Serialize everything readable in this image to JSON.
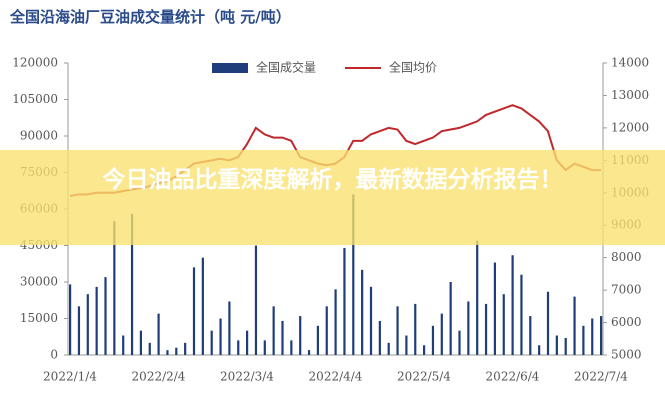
{
  "chart_data": {
    "type": "bar-line",
    "title": "全国沿海油厂豆油成交量统计（吨  元/吨）",
    "banner": "今日油品比重深度解析，最新数据分析报告！",
    "categories": [
      "2022/1/4",
      null,
      null,
      null,
      null,
      null,
      null,
      null,
      null,
      null,
      "2022/2/4",
      null,
      null,
      null,
      null,
      null,
      null,
      null,
      null,
      null,
      "2022/3/4",
      null,
      null,
      null,
      null,
      null,
      null,
      null,
      null,
      null,
      "2022/4/4",
      null,
      null,
      null,
      null,
      null,
      null,
      null,
      null,
      null,
      "2022/5/4",
      null,
      null,
      null,
      null,
      null,
      null,
      null,
      null,
      null,
      "2022/6/4",
      null,
      null,
      null,
      null,
      null,
      null,
      null,
      null,
      null,
      "2022/7/4"
    ],
    "series": [
      {
        "name": "全国成交量",
        "color": "#1f3d7a",
        "values": [
          29000,
          20000,
          25000,
          28000,
          32000,
          55000,
          8000,
          58000,
          10000,
          5000,
          17000,
          2000,
          3000,
          5000,
          36000,
          40000,
          10000,
          15000,
          22000,
          6000,
          10000,
          45000,
          6000,
          20000,
          14000,
          6000,
          16000,
          2000,
          12000,
          20000,
          27000,
          44000,
          66000,
          35000,
          28000,
          14000,
          5000,
          20000,
          8000,
          21000,
          4000,
          12000,
          17000,
          30000,
          10000,
          22000,
          47000,
          21000,
          38000,
          25000,
          41000,
          33000,
          16000,
          4000,
          26000,
          8000,
          7000,
          24000,
          12000,
          15000,
          16000
        ]
      },
      {
        "name": "全国均价",
        "color": "#c0282c",
        "axis": "y2",
        "values": [
          9900,
          9950,
          9950,
          10000,
          10000,
          10000,
          10050,
          10100,
          10150,
          10200,
          10300,
          10350,
          10500,
          10700,
          10900,
          10950,
          11000,
          11050,
          11000,
          11100,
          11500,
          12000,
          11800,
          11700,
          11700,
          11600,
          11100,
          11000,
          10900,
          10850,
          10900,
          11100,
          11600,
          11600,
          11800,
          11900,
          12000,
          11950,
          11600,
          11500,
          11600,
          11700,
          11900,
          11950,
          12000,
          12100,
          12200,
          12400,
          12500,
          12600,
          12700,
          12600,
          12400,
          12200,
          11900,
          11000,
          10700,
          10900,
          10800,
          10700,
          10700
        ]
      }
    ],
    "ylim": [
      0,
      120000
    ],
    "yticks": [
      0,
      15000,
      30000,
      45000,
      60000,
      75000,
      90000,
      105000,
      120000
    ],
    "y2lim": [
      5000,
      14000
    ],
    "y2ticks": [
      5000,
      6000,
      7000,
      8000,
      9000,
      10000,
      11000,
      12000,
      13000,
      14000
    ]
  }
}
